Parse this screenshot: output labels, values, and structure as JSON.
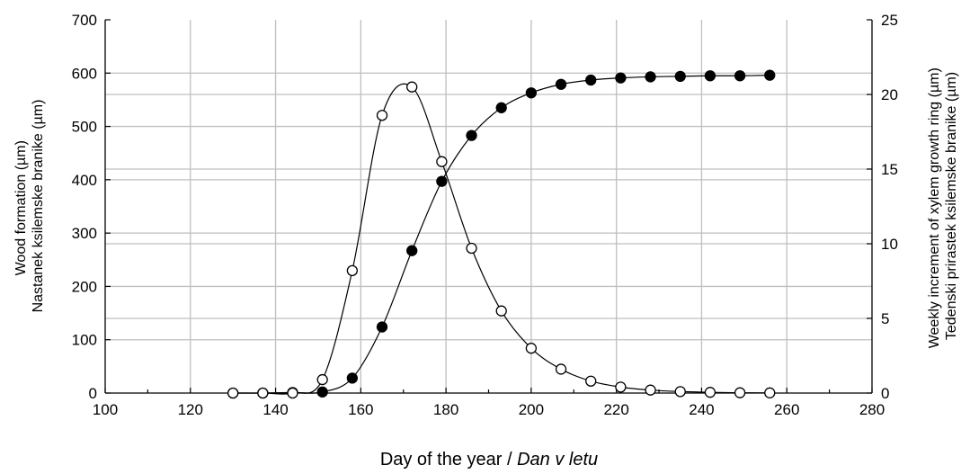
{
  "chart_data": {
    "type": "line",
    "xlabel_main": "Day of the year / ",
    "xlabel_italic": "Dan v letu",
    "ylabel_left": [
      "Wood formation (µm)",
      "Nastanek ksilemske branike (µm)"
    ],
    "ylabel_right": [
      "Weekly increment of xylem growth ring (µm)",
      "Tedenski prirastek ksilemske branike (µm)"
    ],
    "xlim": [
      100,
      280
    ],
    "ylim_left": [
      0,
      700
    ],
    "ylim_right": [
      0,
      25
    ],
    "x_ticks": [
      100,
      120,
      140,
      160,
      180,
      200,
      220,
      240,
      260,
      280
    ],
    "y_left_ticks": [
      0,
      100,
      200,
      300,
      400,
      500,
      600,
      700
    ],
    "y_right_ticks": [
      0,
      5,
      10,
      15,
      20,
      25
    ],
    "grid": true,
    "series": [
      {
        "axis": "left",
        "marker": "filled",
        "color": "#000000",
        "x": [
          130,
          137,
          144,
          151,
          158,
          165,
          172,
          179,
          186,
          193,
          200,
          207,
          214,
          221,
          228,
          235,
          242,
          249,
          256
        ],
        "y": [
          0,
          0,
          1,
          2,
          28,
          124,
          267,
          397,
          483,
          535,
          563,
          579,
          587,
          591,
          593,
          594,
          595,
          595,
          596
        ]
      },
      {
        "axis": "right",
        "marker": "open",
        "color": "#000000",
        "x": [
          130,
          137,
          144,
          151,
          158,
          165,
          172,
          179,
          186,
          193,
          200,
          207,
          214,
          221,
          228,
          235,
          242,
          249,
          256
        ],
        "y": [
          0,
          0,
          0,
          0.9,
          8.2,
          18.6,
          20.5,
          15.5,
          9.7,
          5.5,
          3.0,
          1.6,
          0.8,
          0.4,
          0.2,
          0.1,
          0.05,
          0.02,
          0.01
        ]
      }
    ]
  }
}
